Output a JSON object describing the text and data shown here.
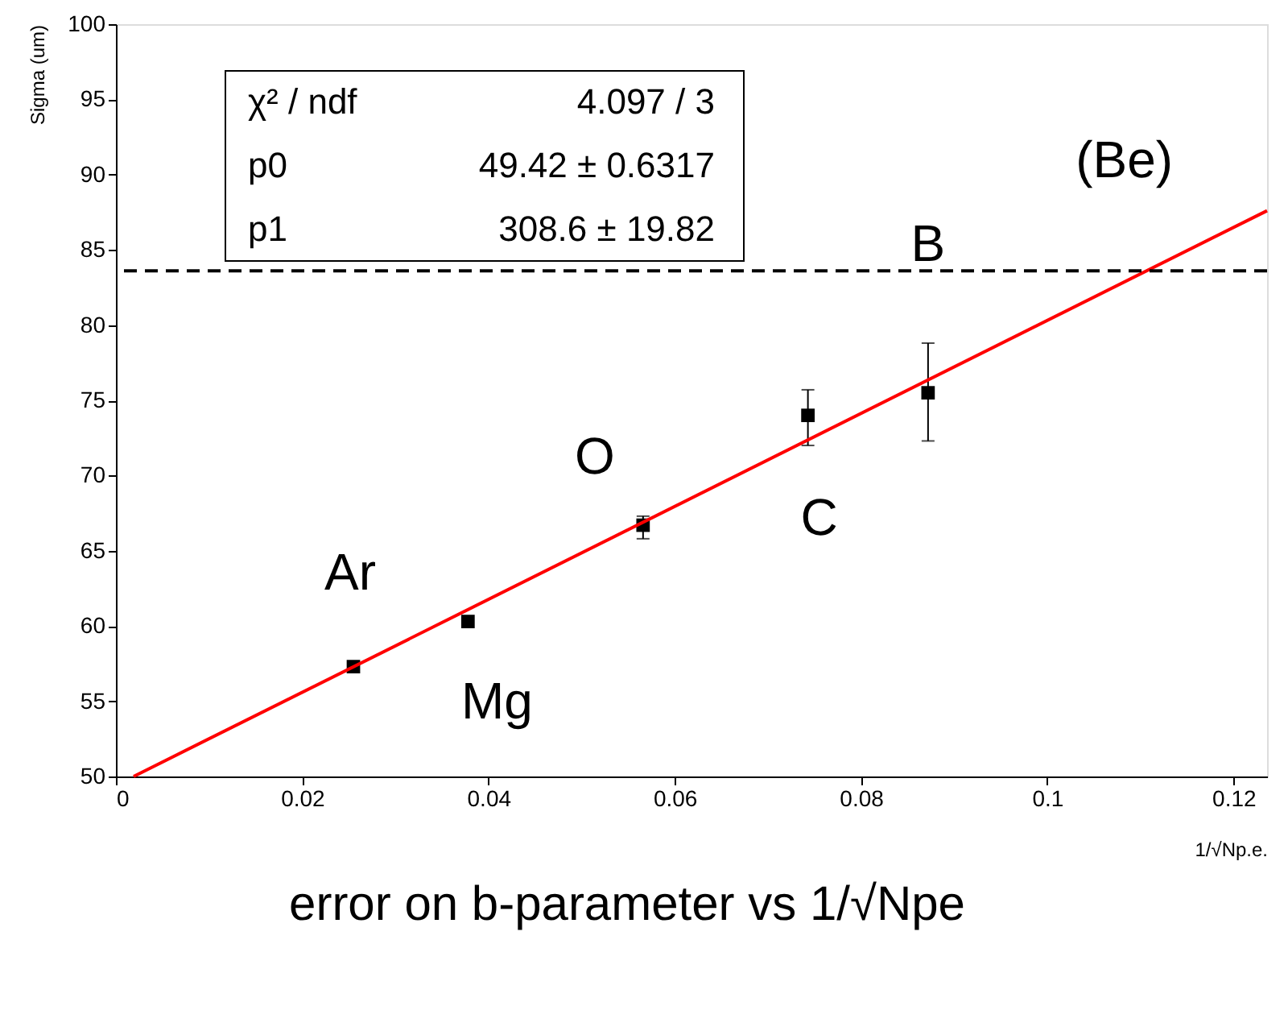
{
  "chart_data": {
    "type": "scatter",
    "xlabel": "1/√Np.e.",
    "ylabel": "Sigma (um)",
    "xlim": [
      0,
      0.1236
    ],
    "ylim": [
      50,
      100
    ],
    "xticks": [
      0,
      0.02,
      0.04,
      0.06,
      0.08,
      0.1,
      0.12
    ],
    "yticks": [
      50,
      55,
      60,
      65,
      70,
      75,
      80,
      85,
      90,
      95,
      100
    ],
    "grid": false,
    "series": [
      {
        "color": "#000000",
        "marker": "square",
        "x": [
          0.0255,
          0.0378,
          0.0566,
          0.0743,
          0.0872
        ],
        "values": [
          57.3,
          60.3,
          66.7,
          74.0,
          75.5
        ],
        "errors": [
          null,
          null,
          [
            65.8,
            67.3
          ],
          [
            72.0,
            75.7
          ],
          [
            72.3,
            78.8
          ]
        ]
      },
      {
        "type": "line",
        "color": "#ff0000",
        "line_style": "solid",
        "marker": "none",
        "x": [
          0.0019,
          0.1236
        ],
        "values": [
          50.0,
          87.6
        ]
      }
    ],
    "ref_lines": [
      {
        "axis": "y",
        "value": 83.6,
        "color": "#000000",
        "line_style": "dashed"
      }
    ],
    "annotations": [
      {
        "text": "Ar",
        "x": 0.0255,
        "y": 57.3
      },
      {
        "text": "Mg",
        "x": 0.0378,
        "y": 60.3
      },
      {
        "text": "O",
        "x": 0.0566,
        "y": 66.7
      },
      {
        "text": "C",
        "x": 0.0743,
        "y": 74.0
      },
      {
        "text": "B",
        "x": 0.0872,
        "y": 75.5
      },
      {
        "text": "(Be)",
        "x": 0.11,
        "y": 83.4
      },
      "χ² / ndf",
      "4.097 / 3",
      "p0",
      "49.42 ± 0.6317",
      "p1",
      "308.6 ± 19.82",
      "error on b-parameter vs 1/√Npe"
    ]
  }
}
